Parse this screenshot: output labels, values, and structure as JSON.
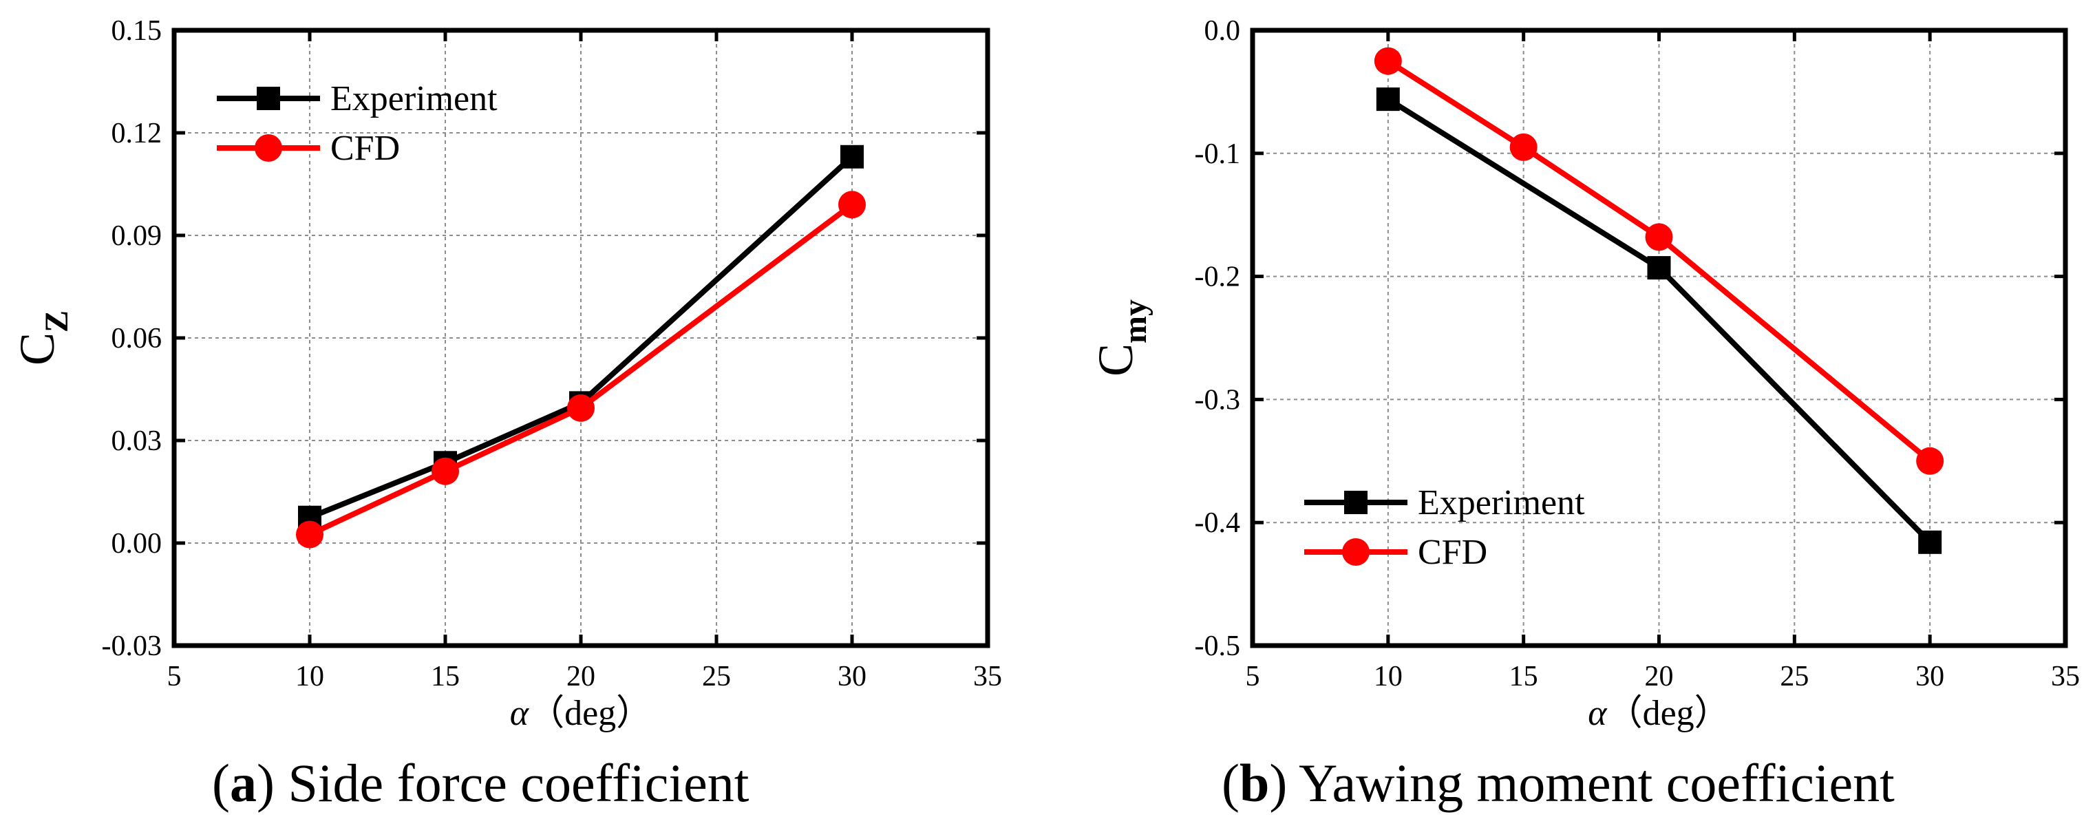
{
  "colors": {
    "experiment": "#000000",
    "cfd": "#ff0000",
    "grid": "#8c8c8c",
    "axis": "#000000"
  },
  "chart_data": [
    {
      "type": "line",
      "panel_label": "a",
      "title": "Side force coefficient",
      "xlabel_symbol": "α",
      "xlabel_unit": "（deg）",
      "ylabel_main": "C",
      "ylabel_sub": "Z",
      "xlim": [
        5,
        35
      ],
      "ylim": [
        -0.03,
        0.15
      ],
      "xticks": [
        "5",
        "10",
        "15",
        "20",
        "25",
        "30",
        "35"
      ],
      "yticks": [
        "-0.03",
        "0.00",
        "0.03",
        "0.06",
        "0.09",
        "0.12",
        "0.15"
      ],
      "grid": true,
      "legend_position": "top-left",
      "series": [
        {
          "name": "Experiment",
          "marker": "square",
          "x": [
            10,
            15,
            20,
            30
          ],
          "values": [
            0.0075,
            0.0235,
            0.041,
            0.113
          ]
        },
        {
          "name": "CFD",
          "marker": "circle",
          "x": [
            10,
            15,
            20,
            30
          ],
          "values": [
            0.0025,
            0.021,
            0.0395,
            0.099
          ]
        }
      ]
    },
    {
      "type": "line",
      "panel_label": "b",
      "title": "Yawing moment coefficient",
      "xlabel_symbol": "α",
      "xlabel_unit": "（deg）",
      "ylabel_main": "C",
      "ylabel_sub": "my",
      "xlim": [
        5,
        35
      ],
      "ylim": [
        -0.5,
        0.0
      ],
      "xticks": [
        "5",
        "10",
        "15",
        "20",
        "25",
        "30",
        "35"
      ],
      "yticks": [
        "-0.5",
        "-0.4",
        "-0.3",
        "-0.2",
        "-0.1",
        "0.0"
      ],
      "grid": true,
      "legend_position": "bottom-left",
      "series": [
        {
          "name": "Experiment",
          "marker": "square",
          "x": [
            10,
            20,
            30
          ],
          "values": [
            -0.056,
            -0.193,
            -0.416
          ]
        },
        {
          "name": "CFD",
          "marker": "circle",
          "x": [
            10,
            15,
            20,
            30
          ],
          "values": [
            -0.025,
            -0.095,
            -0.168,
            -0.35
          ]
        }
      ]
    }
  ]
}
